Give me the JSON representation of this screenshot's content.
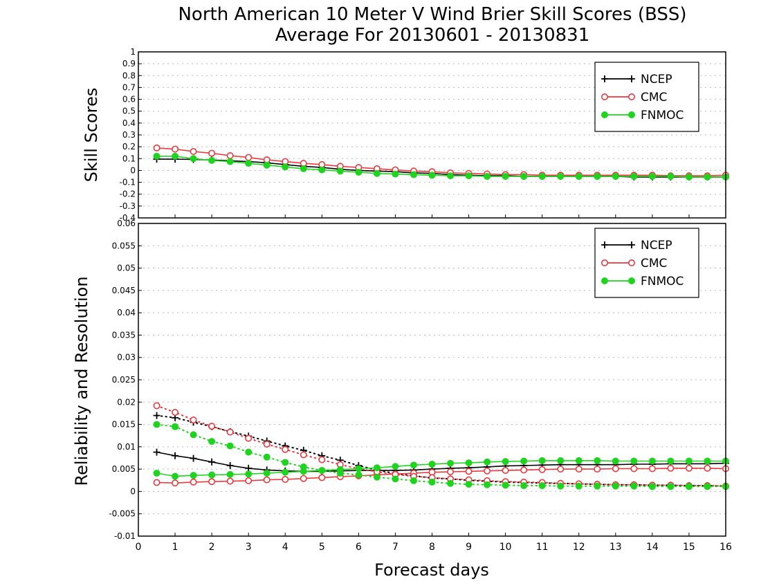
{
  "title_line1": "North American 10 Meter V Wind Brier Skill Scores (BSS)",
  "title_line2": "Average For 20130601 - 20130831",
  "colors": {
    "NCEP": "#000000",
    "CMC": "#e8383c",
    "FNMOC": "#1ed41e"
  },
  "chart_data": [
    {
      "type": "line",
      "ylabel": "Skill Scores",
      "xlim": [
        0,
        16
      ],
      "ylim": [
        -0.4,
        1
      ],
      "yticks": [
        "-0.4",
        "-0.3",
        "-0.2",
        "-0.1",
        "0",
        "0.1",
        "0.2",
        "0.3",
        "0.4",
        "0.5",
        "0.6",
        "0.7",
        "0.8",
        "0.9",
        "1"
      ],
      "grid": true,
      "legend": "top-right",
      "x": [
        0.5,
        1,
        1.5,
        2,
        2.5,
        3,
        3.5,
        4,
        4.5,
        5,
        5.5,
        6,
        6.5,
        7,
        7.5,
        8,
        8.5,
        9,
        9.5,
        10,
        10.5,
        11,
        11.5,
        12,
        12.5,
        13,
        13.5,
        14,
        14.5,
        15,
        15.5,
        16
      ],
      "series": [
        {
          "name": "NCEP",
          "values": [
            0.095,
            0.095,
            0.093,
            0.088,
            0.082,
            0.075,
            0.065,
            0.05,
            0.035,
            0.025,
            0.01,
            0.0,
            -0.005,
            -0.01,
            -0.02,
            -0.025,
            -0.035,
            -0.04,
            -0.045,
            -0.045,
            -0.05,
            -0.05,
            -0.05,
            -0.05,
            -0.05,
            -0.05,
            -0.055,
            -0.055,
            -0.055,
            -0.055,
            -0.055,
            -0.055
          ]
        },
        {
          "name": "CMC",
          "values": [
            0.19,
            0.18,
            0.16,
            0.145,
            0.125,
            0.11,
            0.09,
            0.075,
            0.06,
            0.05,
            0.035,
            0.025,
            0.015,
            0.005,
            -0.005,
            -0.01,
            -0.02,
            -0.025,
            -0.03,
            -0.035,
            -0.035,
            -0.04,
            -0.04,
            -0.04,
            -0.04,
            -0.04,
            -0.04,
            -0.04,
            -0.045,
            -0.045,
            -0.045,
            -0.04
          ]
        },
        {
          "name": "FNMOC",
          "values": [
            0.12,
            0.12,
            0.1,
            0.085,
            0.075,
            0.06,
            0.045,
            0.03,
            0.015,
            0.005,
            -0.005,
            -0.015,
            -0.025,
            -0.03,
            -0.035,
            -0.04,
            -0.045,
            -0.045,
            -0.05,
            -0.05,
            -0.05,
            -0.05,
            -0.05,
            -0.05,
            -0.05,
            -0.05,
            -0.05,
            -0.05,
            -0.05,
            -0.055,
            -0.055,
            -0.055
          ]
        }
      ]
    },
    {
      "type": "line",
      "ylabel": "Reliability and Resolution",
      "xlabel": "Forecast days",
      "xlim": [
        0,
        16
      ],
      "ylim": [
        -0.01,
        0.06
      ],
      "xticks": [
        "0",
        "1",
        "2",
        "3",
        "4",
        "5",
        "6",
        "7",
        "8",
        "9",
        "10",
        "11",
        "12",
        "13",
        "14",
        "15",
        "16"
      ],
      "yticks": [
        "-0.01",
        "-0.005",
        "0",
        "0.005",
        "0.01",
        "0.015",
        "0.02",
        "0.025",
        "0.03",
        "0.035",
        "0.04",
        "0.045",
        "0.05",
        "0.055",
        "0.06"
      ],
      "grid": true,
      "legend": "top-right",
      "legend_entries": [
        "NCEP",
        "CMC",
        "FNMOC"
      ],
      "x": [
        0.5,
        1,
        1.5,
        2,
        2.5,
        3,
        3.5,
        4,
        4.5,
        5,
        5.5,
        6,
        6.5,
        7,
        7.5,
        8,
        8.5,
        9,
        9.5,
        10,
        10.5,
        11,
        11.5,
        12,
        12.5,
        13,
        13.5,
        14,
        14.5,
        15,
        15.5,
        16
      ],
      "series": [
        {
          "group": "NCEP",
          "style": "solid",
          "values": [
            0.0088,
            0.008,
            0.0074,
            0.0066,
            0.0058,
            0.0052,
            0.0048,
            0.0046,
            0.0045,
            0.0045,
            0.0046,
            0.0047,
            0.0047,
            0.0047,
            0.0048,
            0.005,
            0.0052,
            0.0053,
            0.0055,
            0.0057,
            0.0058,
            0.0059,
            0.006,
            0.006,
            0.006,
            0.006,
            0.0061,
            0.0061,
            0.0062,
            0.0062,
            0.0062,
            0.0063
          ]
        },
        {
          "group": "NCEP",
          "style": "dotted",
          "values": [
            0.017,
            0.0165,
            0.0155,
            0.0145,
            0.0134,
            0.0124,
            0.0113,
            0.0102,
            0.0092,
            0.008,
            0.007,
            0.0058,
            0.0048,
            0.004,
            0.0035,
            0.003,
            0.0028,
            0.0025,
            0.0023,
            0.0021,
            0.002,
            0.0019,
            0.0018,
            0.0017,
            0.0016,
            0.0015,
            0.0015,
            0.0014,
            0.0014,
            0.0013,
            0.0013,
            0.0012
          ]
        },
        {
          "group": "CMC",
          "style": "solid",
          "values": [
            0.002,
            0.0019,
            0.0021,
            0.0022,
            0.0023,
            0.0024,
            0.0026,
            0.0027,
            0.0029,
            0.0031,
            0.0033,
            0.0035,
            0.0037,
            0.0039,
            0.0041,
            0.0043,
            0.0044,
            0.0045,
            0.0046,
            0.0047,
            0.0048,
            0.0049,
            0.005,
            0.005,
            0.005,
            0.0051,
            0.0051,
            0.0051,
            0.0052,
            0.0052,
            0.0052,
            0.0051
          ]
        },
        {
          "group": "CMC",
          "style": "dotted",
          "values": [
            0.0192,
            0.0177,
            0.016,
            0.0146,
            0.0133,
            0.0119,
            0.0106,
            0.0094,
            0.0082,
            0.0071,
            0.006,
            0.0051,
            0.0044,
            0.0038,
            0.0034,
            0.0031,
            0.0028,
            0.0026,
            0.0024,
            0.0022,
            0.0021,
            0.002,
            0.0018,
            0.0017,
            0.0016,
            0.0015,
            0.0015,
            0.0014,
            0.0014,
            0.0013,
            0.0013,
            0.0012
          ]
        },
        {
          "group": "FNMOC",
          "style": "solid",
          "values": [
            0.0041,
            0.0034,
            0.0036,
            0.0037,
            0.0038,
            0.0039,
            0.0041,
            0.0043,
            0.0045,
            0.0047,
            0.0049,
            0.0051,
            0.0053,
            0.0056,
            0.0059,
            0.0061,
            0.0063,
            0.0064,
            0.0066,
            0.0067,
            0.0068,
            0.0069,
            0.0069,
            0.0069,
            0.0069,
            0.0068,
            0.0068,
            0.0068,
            0.0068,
            0.0068,
            0.0068,
            0.0068
          ]
        },
        {
          "group": "FNMOC",
          "style": "dotted",
          "values": [
            0.015,
            0.0145,
            0.0127,
            0.0112,
            0.0102,
            0.0088,
            0.0077,
            0.0065,
            0.0055,
            0.0047,
            0.0041,
            0.0037,
            0.0032,
            0.0028,
            0.0024,
            0.0021,
            0.0018,
            0.0016,
            0.0015,
            0.0014,
            0.0013,
            0.0013,
            0.0012,
            0.0012,
            0.0012,
            0.0012,
            0.0012,
            0.0011,
            0.0011,
            0.0011,
            0.0011,
            0.0011
          ]
        }
      ]
    }
  ]
}
